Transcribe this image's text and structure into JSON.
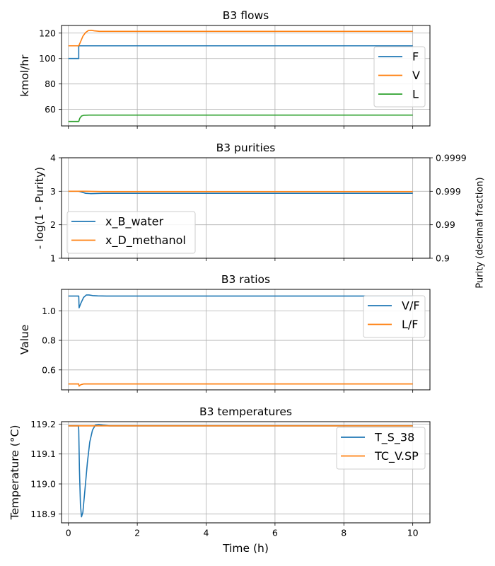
{
  "figure": {
    "panels": [
      {
        "title": "B3 flows",
        "ylabel": "kmol/hr",
        "xlabel": "",
        "xticks": [],
        "ylim": [
          47,
          126
        ],
        "yticks": [
          60,
          80,
          100,
          120
        ],
        "legend": {
          "position": "right"
        },
        "grid": true
      },
      {
        "title": "B3 purities",
        "ylabel": "- log(1 - Purity)",
        "ylabel_right": "Purity (decimal fraction)",
        "xlabel": "",
        "xticks": [],
        "ylim": [
          1,
          4
        ],
        "yticks": [
          1,
          2,
          3,
          4
        ],
        "yticks_right": [
          {
            "value": 1,
            "label": "0.9"
          },
          {
            "value": 2,
            "label": "0.99"
          },
          {
            "value": 3,
            "label": "0.999"
          },
          {
            "value": 4,
            "label": "0.9999"
          }
        ],
        "legend": {
          "position": "lower-left"
        },
        "grid": true
      },
      {
        "title": "B3 ratios",
        "ylabel": "Value",
        "xlabel": "",
        "xticks": [],
        "ylim": [
          0.465,
          1.145
        ],
        "yticks": [
          0.6,
          0.8,
          1.0
        ],
        "ytick_labels": [
          "0.6",
          "0.8",
          "1.0"
        ],
        "legend": {
          "position": "right"
        },
        "grid": true
      },
      {
        "title": "B3 temperatures",
        "ylabel": "Temperature (°C)",
        "xlabel": "Time (h)",
        "xticks": [
          0,
          2,
          4,
          6,
          8,
          10
        ],
        "ylim": [
          118.87,
          119.208
        ],
        "yticks": [
          118.9,
          119.0,
          119.1,
          119.2
        ],
        "ytick_labels": [
          "118.9",
          "119.0",
          "119.1",
          "119.2"
        ],
        "legend": {
          "position": "top-right"
        },
        "grid": true
      }
    ],
    "colors": {
      "blue": "#1f77b4",
      "orange": "#ff7f0e",
      "green": "#2ca02c"
    }
  },
  "chart_data": [
    {
      "type": "line",
      "title": "B3 flows",
      "xlabel": "",
      "ylabel": "kmol/hr",
      "xlim": [
        -0.2,
        10.5
      ],
      "ylim": [
        47,
        126
      ],
      "grid": true,
      "legend": "right",
      "series": [
        {
          "name": "F",
          "color": "#1f77b4",
          "x": [
            0,
            0.3,
            0.3,
            10
          ],
          "y": [
            100,
            100,
            110,
            110
          ]
        },
        {
          "name": "V",
          "color": "#ff7f0e",
          "x": [
            0,
            0.3,
            0.35,
            0.42,
            0.5,
            0.58,
            0.66,
            0.75,
            0.9,
            1.2,
            10
          ],
          "y": [
            110,
            110,
            113,
            117.5,
            120.5,
            122,
            122.2,
            121.8,
            121.4,
            121.4,
            121.4
          ]
        },
        {
          "name": "L",
          "color": "#2ca02c",
          "x": [
            0,
            0.3,
            0.33,
            0.38,
            0.45,
            0.6,
            10
          ],
          "y": [
            50.5,
            50.5,
            53,
            54.8,
            55.4,
            55.5,
            55.5
          ]
        }
      ]
    },
    {
      "type": "line",
      "title": "B3 purities",
      "xlabel": "",
      "ylabel": "- log(1 - Purity)",
      "ylabel_right": "Purity (decimal fraction)",
      "xlim": [
        -0.2,
        10.5
      ],
      "ylim": [
        1,
        4
      ],
      "grid": true,
      "legend": "lower-left",
      "series": [
        {
          "name": "x_B_water",
          "color": "#1f77b4",
          "x": [
            0,
            0.3,
            0.4,
            0.5,
            0.65,
            1.0,
            10
          ],
          "y": [
            3.0,
            3.0,
            2.97,
            2.94,
            2.93,
            2.94,
            2.94
          ]
        },
        {
          "name": "x_D_methanol",
          "color": "#ff7f0e",
          "x": [
            0,
            0.3,
            0.5,
            1.0,
            10
          ],
          "y": [
            3.0,
            3.0,
            3.0,
            2.99,
            2.99
          ]
        }
      ]
    },
    {
      "type": "line",
      "title": "B3 ratios",
      "xlabel": "",
      "ylabel": "Value",
      "xlim": [
        -0.2,
        10.5
      ],
      "ylim": [
        0.465,
        1.145
      ],
      "grid": true,
      "legend": "right",
      "series": [
        {
          "name": "V/F",
          "color": "#1f77b4",
          "x": [
            0,
            0.3,
            0.31,
            0.36,
            0.44,
            0.52,
            0.6,
            0.7,
            0.85,
            1.1,
            10
          ],
          "y": [
            1.1,
            1.1,
            1.02,
            1.05,
            1.09,
            1.107,
            1.107,
            1.103,
            1.101,
            1.1,
            1.1
          ]
        },
        {
          "name": "L/F",
          "color": "#ff7f0e",
          "x": [
            0,
            0.3,
            0.31,
            0.36,
            0.45,
            10
          ],
          "y": [
            0.505,
            0.505,
            0.49,
            0.5,
            0.505,
            0.505
          ]
        }
      ]
    },
    {
      "type": "line",
      "title": "B3 temperatures",
      "xlabel": "Time (h)",
      "ylabel": "Temperature (°C)",
      "xlim": [
        -0.2,
        10.5
      ],
      "ylim": [
        118.87,
        119.208
      ],
      "xticks": [
        0,
        2,
        4,
        6,
        8,
        10
      ],
      "grid": true,
      "legend": "top-right",
      "series": [
        {
          "name": "T_S_38",
          "color": "#1f77b4",
          "x": [
            0,
            0.29,
            0.3,
            0.32,
            0.35,
            0.38,
            0.42,
            0.48,
            0.55,
            0.62,
            0.7,
            0.78,
            0.88,
            1.0,
            1.2,
            10
          ],
          "y": [
            119.194,
            119.194,
            119.18,
            119.05,
            118.93,
            118.89,
            118.905,
            118.98,
            119.07,
            119.14,
            119.18,
            119.196,
            119.198,
            119.196,
            119.194,
            119.194
          ]
        },
        {
          "name": "TC_V.SP",
          "color": "#ff7f0e",
          "x": [
            0,
            10
          ],
          "y": [
            119.194,
            119.194
          ]
        }
      ]
    }
  ]
}
